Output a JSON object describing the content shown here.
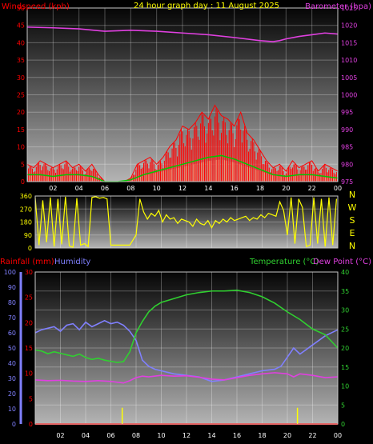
{
  "colors": {
    "background": "#000000",
    "frame": "#c8c8c8",
    "grid": "#ffffff",
    "axis_label": "#ffffff",
    "wind_gust": "#ff0000",
    "wind_avg": "#00c800",
    "wind_light": "#d0ffd0",
    "barometer": "#e040e0",
    "direction": "#ffff00",
    "rainfall": "#ff0000",
    "humidity": "#8080ff",
    "temperature": "#30d030",
    "dewpoint": "#e040e0",
    "title": "#ffff00",
    "compass": "#ffff00"
  },
  "chart_data": [
    {
      "type": "line",
      "title": "24 hour graph day : 11 August 2025",
      "y_left_label": "Windspeed (kph)",
      "y_right_label": "Barometer (hpa)",
      "x_tick_labels": [
        "02",
        "04",
        "06",
        "08",
        "10",
        "12",
        "14",
        "16",
        "18",
        "20",
        "22",
        "00"
      ],
      "y_left_ticks": [
        0,
        5,
        10,
        15,
        20,
        25,
        30,
        35,
        40,
        45,
        50
      ],
      "y_right_ticks": [
        975,
        980,
        985,
        990,
        995,
        1000,
        1005,
        1010,
        1015,
        1020,
        1025
      ],
      "y_left_range": [
        0,
        50
      ],
      "y_right_range": [
        975,
        1025
      ],
      "x_range_hours": [
        0,
        24
      ],
      "grid": true,
      "series": [
        {
          "name": "Windspeed (kph)",
          "role": "gust",
          "style": "vertical-bars",
          "x": [
            0,
            0.5,
            1,
            1.5,
            2,
            2.5,
            3,
            3.5,
            4,
            4.5,
            5,
            5.5,
            6,
            6.5,
            7,
            7.5,
            8,
            8.5,
            9,
            9.5,
            10,
            10.5,
            11,
            11.5,
            12,
            12.5,
            13,
            13.5,
            14,
            14.5,
            15,
            15.5,
            16,
            16.5,
            17,
            17.5,
            18,
            18.5,
            19,
            19.5,
            20,
            20.5,
            21,
            21.5,
            22,
            22.5,
            23,
            23.5,
            24
          ],
          "values": [
            5,
            4,
            6,
            5,
            4,
            5,
            6,
            4,
            5,
            3,
            5,
            2,
            0,
            0,
            0,
            0,
            1,
            5,
            6,
            7,
            5,
            7,
            10,
            12,
            16,
            15,
            17,
            20,
            18,
            22,
            19,
            18,
            16,
            20,
            14,
            12,
            9,
            6,
            4,
            5,
            3,
            6,
            4,
            5,
            6,
            3,
            5,
            4,
            3
          ]
        },
        {
          "name": "Windspeed (kph)",
          "role": "average",
          "x": [
            0,
            1,
            2,
            3,
            4,
            5,
            6,
            7,
            8,
            9,
            10,
            11,
            12,
            13,
            14,
            15,
            16,
            17,
            18,
            19,
            20,
            21,
            22,
            23,
            24
          ],
          "values": [
            2,
            2,
            1.5,
            2,
            2,
            1.5,
            0,
            0,
            0.5,
            2,
            3,
            4,
            5,
            6,
            7,
            7.5,
            6.5,
            5,
            3.5,
            2,
            1.5,
            2,
            2,
            1.5,
            1
          ]
        },
        {
          "name": "Barometer (hpa)",
          "x": [
            0,
            2,
            4,
            6,
            8,
            10,
            12,
            14,
            16,
            18,
            19,
            19.5,
            20,
            21,
            22,
            23,
            24
          ],
          "values": [
            1019.5,
            1019.3,
            1019,
            1018.3,
            1018.6,
            1018.3,
            1017.8,
            1017.3,
            1016.5,
            1015.6,
            1015.3,
            1015.6,
            1016.1,
            1016.8,
            1017.3,
            1017.8,
            1017.5
          ]
        }
      ]
    },
    {
      "type": "line",
      "title": "",
      "y_left_ticks": [
        0,
        90,
        180,
        270,
        360
      ],
      "y_left_range": [
        0,
        360
      ],
      "compass_labels": [
        "N",
        "W",
        "S",
        "E",
        "N"
      ],
      "x_range_hours": [
        0,
        24
      ],
      "grid": true,
      "series": [
        {
          "name": "",
          "x": [
            0,
            0.3,
            0.6,
            0.9,
            1.2,
            1.5,
            1.8,
            2.1,
            2.4,
            2.7,
            3.0,
            3.3,
            3.6,
            3.9,
            4.2,
            4.5,
            4.8,
            5.1,
            5.4,
            5.7,
            6.0,
            7.5,
            8.0,
            8.3,
            8.6,
            8.9,
            9.2,
            9.5,
            9.8,
            10.1,
            10.4,
            10.7,
            11.0,
            11.3,
            11.6,
            11.9,
            12.2,
            12.5,
            12.8,
            13.1,
            13.4,
            13.7,
            14.0,
            14.3,
            14.6,
            14.9,
            15.2,
            15.5,
            15.8,
            16.1,
            16.4,
            16.7,
            17.0,
            17.3,
            17.6,
            17.9,
            18.2,
            18.5,
            18.8,
            19.1,
            19.4,
            19.7,
            20.0,
            20.3,
            20.6,
            20.9,
            21.2,
            21.5,
            21.8,
            22.1,
            22.4,
            22.7,
            23.0,
            23.3,
            23.6,
            23.9
          ],
          "values": [
            350,
            20,
            330,
            40,
            350,
            10,
            340,
            25,
            355,
            15,
            5,
            345,
            20,
            30,
            10,
            350,
            355,
            345,
            350,
            340,
            20,
            20,
            90,
            340,
            250,
            200,
            240,
            220,
            260,
            180,
            230,
            200,
            210,
            170,
            200,
            190,
            180,
            150,
            200,
            170,
            160,
            190,
            140,
            190,
            170,
            200,
            180,
            210,
            190,
            200,
            210,
            220,
            190,
            210,
            200,
            230,
            210,
            240,
            230,
            220,
            320,
            260,
            90,
            350,
            30,
            340,
            280,
            10,
            20,
            350,
            30,
            340,
            10,
            350,
            20,
            340
          ]
        }
      ]
    },
    {
      "type": "line",
      "title": "",
      "y_left_label": "Rainfall (mm)",
      "y_left2_label": "Humidity",
      "y_right_label": "Temperature (°C)",
      "y_right2_label": "Dew Point (°C)",
      "x_tick_labels": [
        "02",
        "04",
        "06",
        "08",
        "10",
        "12",
        "14",
        "16",
        "18",
        "20",
        "22",
        "00"
      ],
      "rain_ticks": [
        0,
        5,
        10,
        15,
        20,
        25,
        30
      ],
      "rain_range": [
        0,
        30
      ],
      "humidity_ticks": [
        0,
        10,
        20,
        30,
        40,
        50,
        60,
        70,
        80,
        90,
        100
      ],
      "humidity_range": [
        0,
        100
      ],
      "temp_ticks": [
        0,
        5,
        10,
        15,
        20,
        25,
        30,
        35,
        40
      ],
      "temp_range": [
        0,
        40
      ],
      "x_range_hours": [
        0,
        24
      ],
      "grid": true,
      "series": [
        {
          "name": "Humidity",
          "axis": "humidity",
          "x": [
            0,
            0.5,
            1,
            1.5,
            2,
            2.5,
            3,
            3.5,
            4,
            4.5,
            5,
            5.5,
            6,
            6.5,
            7,
            7.5,
            8,
            8.5,
            9,
            9.5,
            10,
            11,
            12,
            13,
            14,
            15,
            16,
            17,
            18,
            19,
            19.5,
            20,
            20.5,
            21,
            22,
            23,
            24
          ],
          "values": [
            60,
            62,
            63,
            64,
            61,
            65,
            66,
            62,
            67,
            64,
            66,
            68,
            66,
            67,
            65,
            61,
            55,
            42,
            38,
            36,
            35,
            33,
            32,
            31,
            28,
            29,
            31,
            33,
            35,
            36,
            38,
            44,
            50,
            46,
            52,
            58,
            62
          ]
        },
        {
          "name": "Temperature (°C)",
          "axis": "temp",
          "x": [
            0,
            0.5,
            1,
            1.5,
            2,
            2.5,
            3,
            3.5,
            4,
            4.5,
            5,
            5.5,
            6,
            6.5,
            7,
            7.5,
            8,
            8.5,
            9,
            9.5,
            10,
            11,
            12,
            13,
            14,
            15,
            16,
            17,
            18,
            19,
            20,
            21,
            22,
            23,
            24
          ],
          "values": [
            19.5,
            19.2,
            18.5,
            19,
            18.6,
            18.2,
            17.8,
            18.4,
            17.5,
            17,
            17.3,
            16.8,
            16.5,
            16.2,
            16.4,
            19,
            24,
            27,
            29.5,
            31,
            32,
            33,
            34,
            34.6,
            35,
            35,
            35.2,
            34.6,
            33.5,
            31.8,
            29.5,
            27.5,
            25,
            23.5,
            20
          ]
        },
        {
          "name": "Dew Point (°C)",
          "axis": "temp",
          "x": [
            0,
            1,
            2,
            3,
            4,
            5,
            6,
            7,
            7.5,
            8,
            8.5,
            9,
            10,
            11,
            12,
            13,
            14,
            15,
            16,
            17,
            18,
            19,
            20,
            20.5,
            21,
            22,
            23,
            24
          ],
          "values": [
            11.6,
            11.4,
            11.5,
            11.3,
            11.2,
            11.4,
            11.2,
            10.8,
            11.4,
            12.2,
            12.6,
            12.4,
            12.8,
            12.6,
            12.7,
            12.3,
            11.8,
            11.6,
            12.2,
            12.8,
            13.2,
            13.5,
            13.2,
            12.4,
            13.2,
            12.8,
            12.2,
            12.4
          ]
        },
        {
          "name": "Rainfall (mm)",
          "axis": "rain",
          "style": "baseline",
          "x": [
            0,
            24
          ],
          "values": [
            0,
            0
          ]
        },
        {
          "name": "Rainfall (mm)",
          "axis": "rain",
          "style": "spikes",
          "x": [
            6.9,
            20.8
          ],
          "values": [
            3.2,
            3.2
          ]
        }
      ]
    }
  ]
}
